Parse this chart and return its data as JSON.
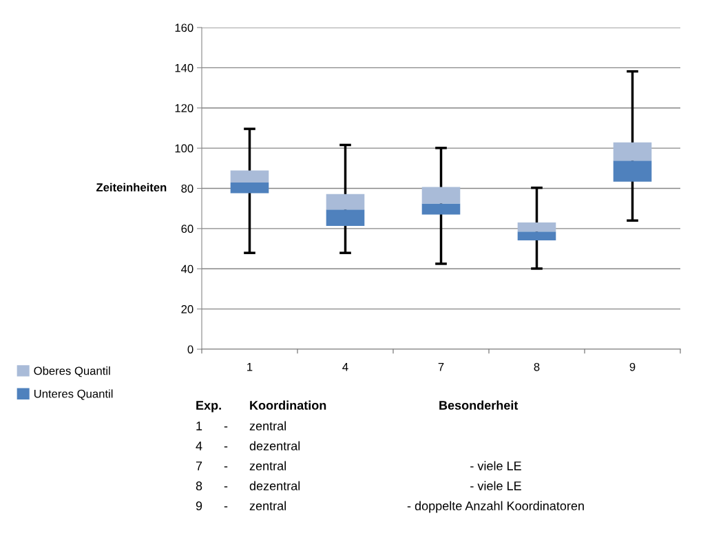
{
  "chart_data": {
    "type": "bar",
    "ylabel": "Zeiteinheiten",
    "categories": [
      "1",
      "4",
      "7",
      "8",
      "9"
    ],
    "series": [
      {
        "name": "Unteres Quantil",
        "color": "#4f81bd",
        "base": [
          77.6,
          61.3,
          67.0,
          54.1,
          83.3
        ],
        "values": [
          5.3,
          8.2,
          5.5,
          4.4,
          10.5
        ],
        "errors": [
          [
            47.9,
            109.6
          ],
          [
            47.9,
            101.6
          ],
          [
            42.5,
            100.1
          ],
          [
            40.1,
            80.3
          ],
          [
            64.0,
            138.2
          ]
        ]
      },
      {
        "name": "Oberes Quantil",
        "color": "#a9bbd8",
        "base": [
          82.9,
          69.5,
          72.5,
          58.5,
          93.8
        ],
        "values": [
          6.0,
          7.7,
          8.2,
          4.5,
          9.1
        ]
      }
    ],
    "ylim": [
      0,
      160
    ],
    "yticks": [
      0,
      20,
      40,
      60,
      80,
      100,
      120,
      140,
      160
    ],
    "grid": "y",
    "legend": "left",
    "annotations": [
      "Exp.\tKoordination\tBesonderheit",
      "1\t-\tzentral\t",
      "4\t-\tdezentral\t",
      "7\t-\tzentral\t- viele LE",
      "8\t-\tdezentral\t- viele LE",
      "9\t-\tzentral\t- doppelte Anzahl Koordinatoren"
    ]
  }
}
